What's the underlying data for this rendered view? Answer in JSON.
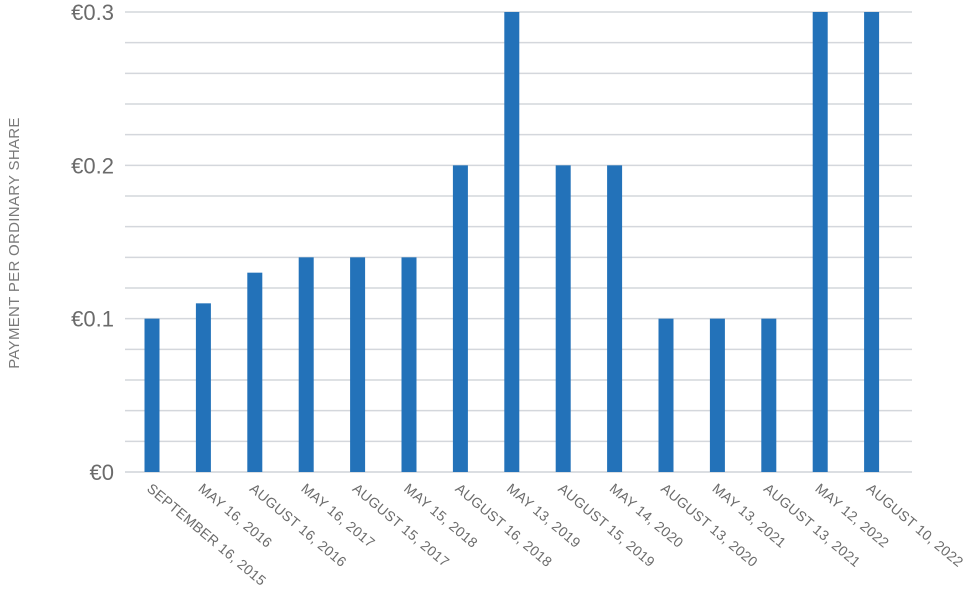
{
  "chart_data": {
    "type": "bar",
    "ylabel": "PAYMENT PER ORDINARY SHARE",
    "xlabel": "",
    "ylim": [
      0,
      0.3
    ],
    "yticks": [
      {
        "value": 0,
        "label": "€0"
      },
      {
        "value": 0.1,
        "label": "€0.1"
      },
      {
        "value": 0.2,
        "label": "€0.2"
      },
      {
        "value": 0.3,
        "label": "€0.3"
      }
    ],
    "minor_grid_step": 0.02,
    "grid": true,
    "bar_color": "#2372b9",
    "categories": [
      "SEPTEMBER 16, 2015",
      "MAY 16, 2016",
      "AUGUST 16, 2016",
      "MAY 16, 2017",
      "AUGUST 15, 2017",
      "MAY 15, 2018",
      "AUGUST 16, 2018",
      "MAY 13, 2019",
      "AUGUST 15, 2019",
      "MAY 14, 2020",
      "AUGUST 13, 2020",
      "MAY 13, 2021",
      "AUGUST 13, 2021",
      "MAY 12, 2022",
      "AUGUST 10, 2022"
    ],
    "values": [
      0.1,
      0.11,
      0.13,
      0.14,
      0.14,
      0.14,
      0.2,
      0.3,
      0.2,
      0.2,
      0.1,
      0.1,
      0.1,
      0.3,
      0.3
    ]
  }
}
